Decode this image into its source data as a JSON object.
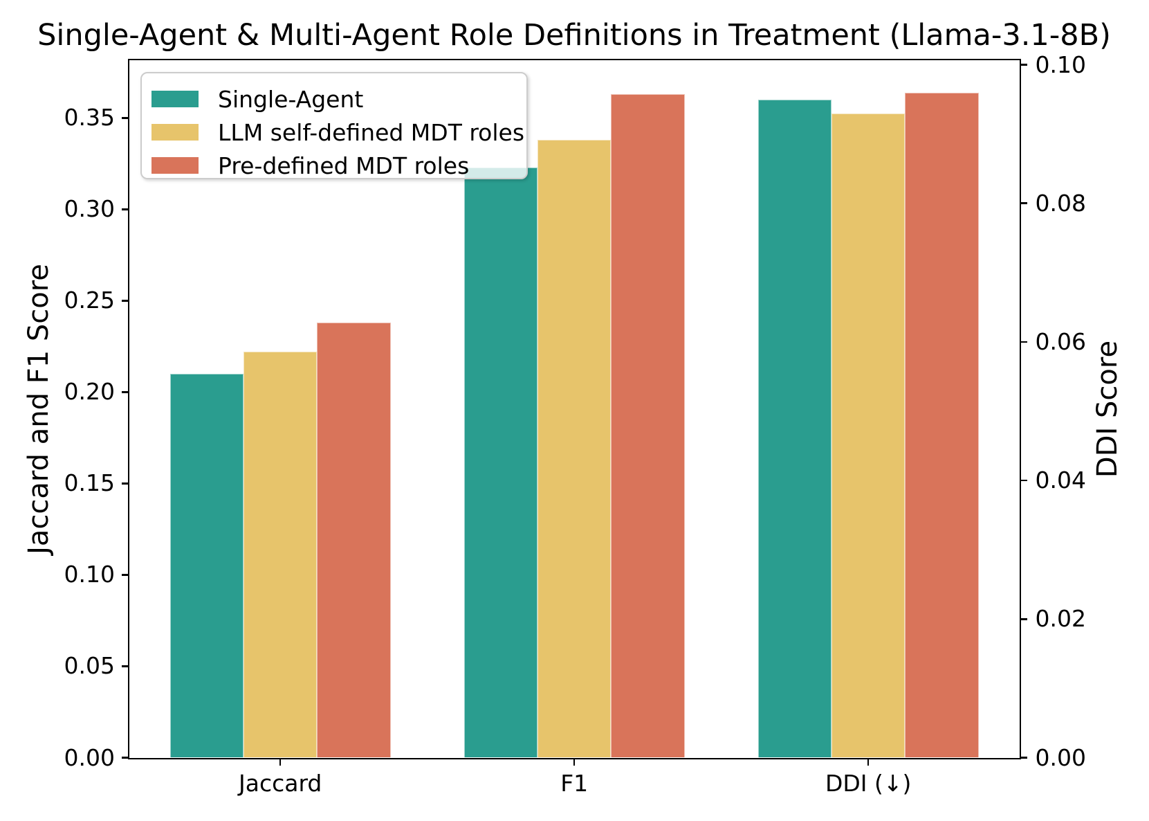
{
  "chart_data": {
    "type": "bar",
    "title": "Single-Agent & Multi-Agent Role Definitions in Treatment (Llama-3.1-8B)",
    "categories": [
      "Jaccard",
      "F1",
      "DDI (↓)"
    ],
    "category_axis": [
      "left",
      "left",
      "right"
    ],
    "series": [
      {
        "name": "Single-Agent",
        "color": "#2a9d8f",
        "values": [
          0.21,
          0.323,
          0.095
        ]
      },
      {
        "name": "LLM self-defined MDT roles",
        "color": "#e7c46b",
        "values": [
          0.222,
          0.338,
          0.093
        ]
      },
      {
        "name": "Pre-defined MDT roles",
        "color": "#d9745a",
        "values": [
          0.238,
          0.363,
          0.096
        ]
      }
    ],
    "left_axis": {
      "label": "Jaccard and F1 Score",
      "ticks": [
        "0.00",
        "0.05",
        "0.10",
        "0.15",
        "0.20",
        "0.25",
        "0.30",
        "0.35"
      ],
      "range": [
        0,
        0.3814
      ]
    },
    "right_axis": {
      "label": "DDI Score",
      "ticks": [
        "0.00",
        "0.02",
        "0.04",
        "0.06",
        "0.08",
        "0.10"
      ],
      "range": [
        0,
        0.1006
      ]
    },
    "legend": {
      "position": "upper left",
      "entries": [
        "Single-Agent",
        "LLM self-defined MDT roles",
        "Pre-defined MDT roles"
      ]
    },
    "grid": false
  }
}
